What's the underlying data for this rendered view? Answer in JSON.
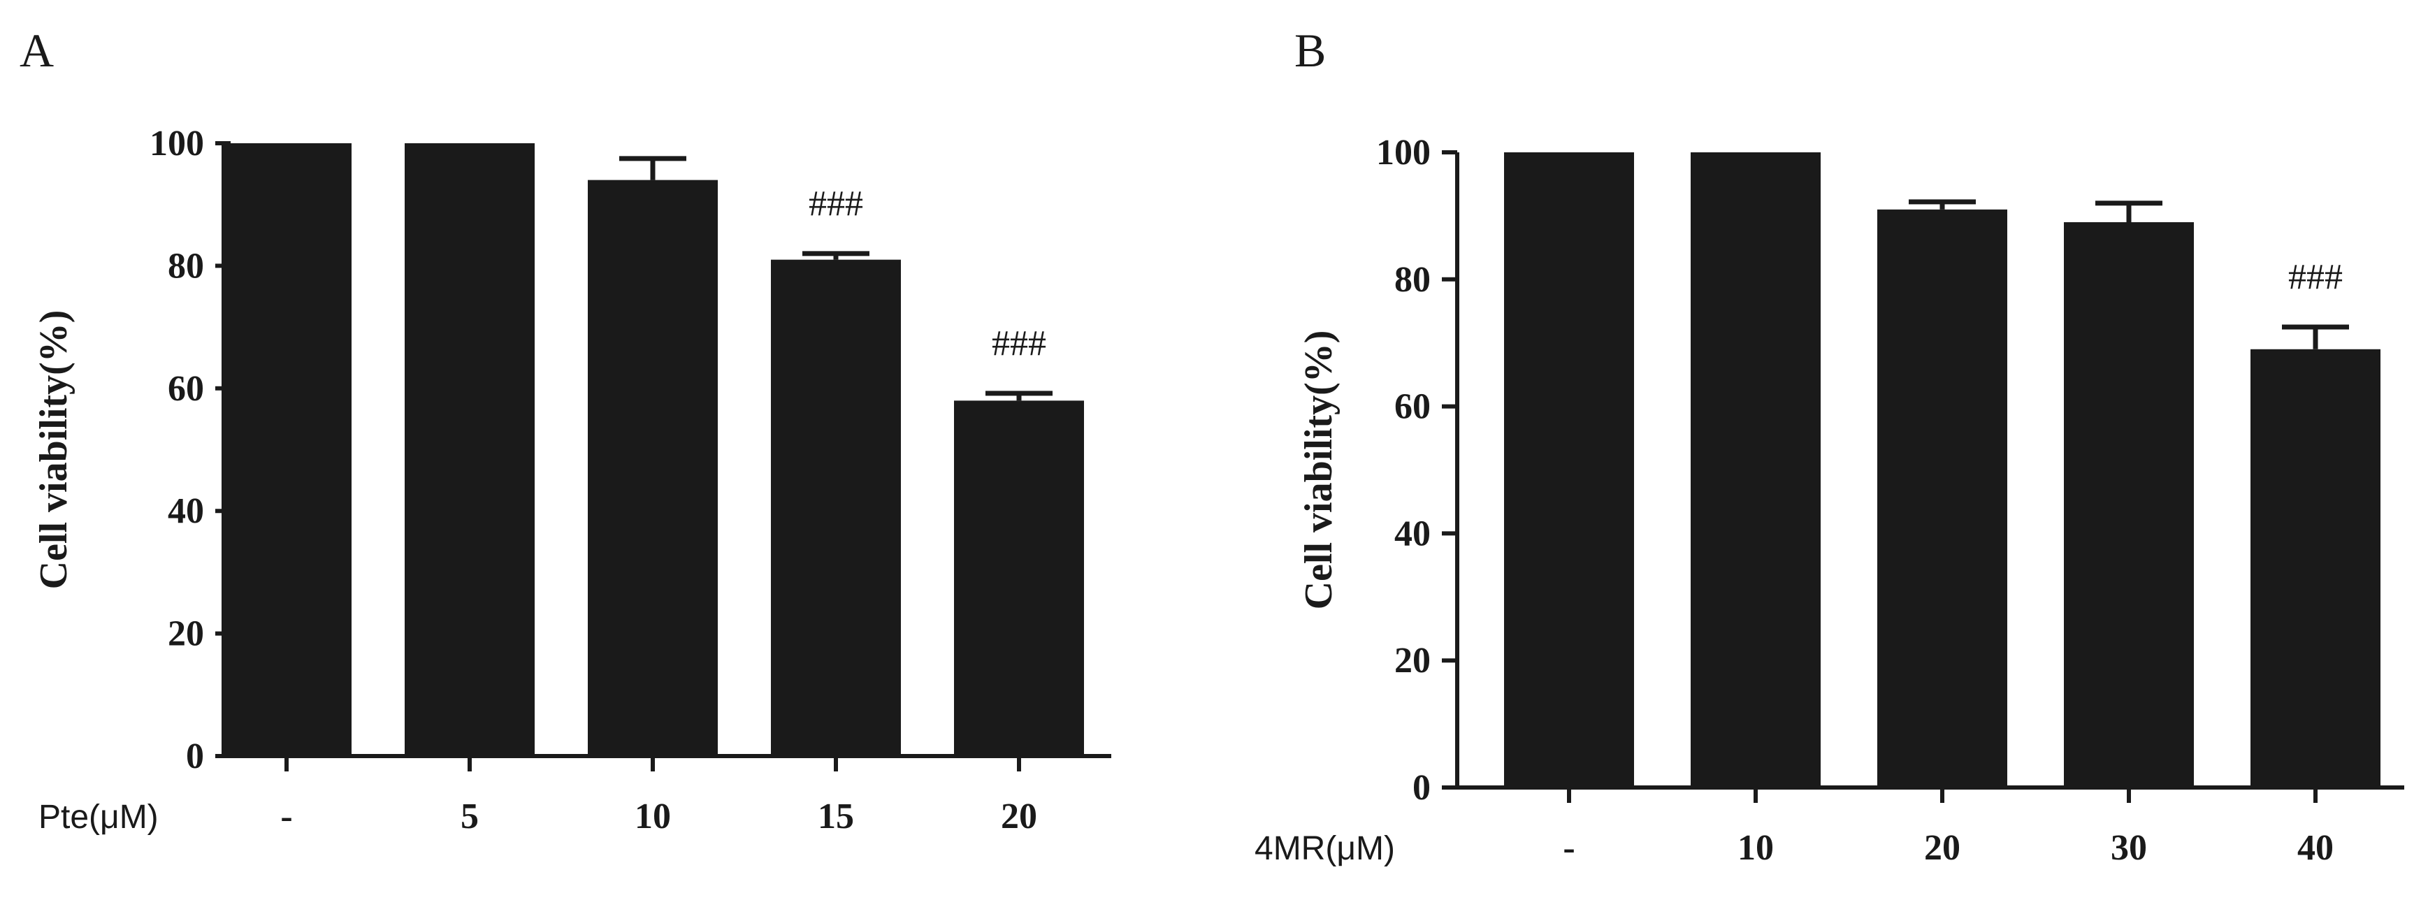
{
  "colors": {
    "bar": "#1a1a1a",
    "axis": "#1a1a1a",
    "background": "#ffffff"
  },
  "chart_data": [
    {
      "panel": "A",
      "type": "bar",
      "xlabel": "Pte(μM)",
      "ylabel": "Cell viability(%)",
      "ylim": [
        0,
        100
      ],
      "yticks": [
        0,
        20,
        40,
        60,
        80,
        100
      ],
      "categories": [
        "-",
        "5",
        "10",
        "15",
        "20"
      ],
      "values": [
        100,
        100,
        94,
        81,
        58
      ],
      "errors": [
        0,
        0,
        3.5,
        1,
        1.2
      ],
      "annotations": [
        "",
        "",
        "",
        "###",
        "###"
      ]
    },
    {
      "panel": "B",
      "type": "bar",
      "xlabel": "4MR(μM)",
      "ylabel": "Cell viability(%)",
      "ylim": [
        0,
        100
      ],
      "yticks": [
        0,
        20,
        40,
        60,
        80,
        100
      ],
      "categories": [
        "-",
        "10",
        "20",
        "30",
        "40"
      ],
      "values": [
        100,
        100,
        91,
        89,
        69
      ],
      "errors": [
        0,
        0,
        1.2,
        3,
        3.5
      ],
      "annotations": [
        "",
        "",
        "",
        "",
        "###"
      ]
    }
  ]
}
